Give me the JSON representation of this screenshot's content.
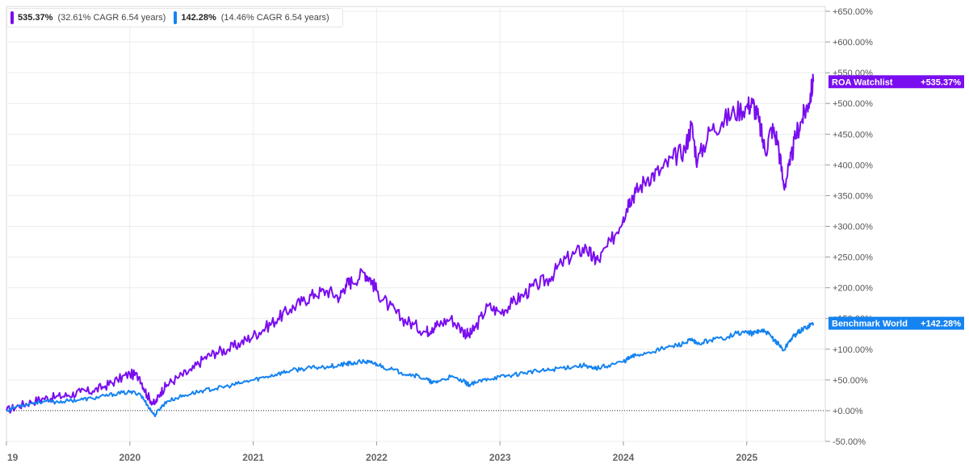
{
  "legend": {
    "items": [
      {
        "value": "535.37%",
        "note": "(32.61% CAGR 6.54 years)",
        "color": "#7a0df0"
      },
      {
        "value": "142.28%",
        "note": "(14.46% CAGR 6.54 years)",
        "color": "#1583f0"
      }
    ]
  },
  "chart_data": {
    "type": "line",
    "title": "",
    "xlabel": "",
    "ylabel": "",
    "x_tick_labels": [
      "19",
      "2020",
      "2021",
      "2022",
      "2023",
      "2024",
      "2025"
    ],
    "y_tick_labels": [
      "-50.00%",
      "+0.00%",
      "+50.00%",
      "+100.00%",
      "+150.00%",
      "+200.00%",
      "+250.00%",
      "+300.00%",
      "+350.00%",
      "+400.00%",
      "+450.00%",
      "+500.00%",
      "+550.00%",
      "+600.00%",
      "+650.00%"
    ],
    "y_ticks": [
      -50,
      0,
      50,
      100,
      150,
      200,
      250,
      300,
      350,
      400,
      450,
      500,
      550,
      600,
      650
    ],
    "xlim": [
      2019.0,
      2025.7
    ],
    "ylim": [
      -50,
      650
    ],
    "grid": true,
    "zero_line": true,
    "series": [
      {
        "name": "ROA Watchlist",
        "color": "#7a0df0",
        "end_label": "+535.37%",
        "x": [
          2019.0,
          2019.1,
          2019.2,
          2019.3,
          2019.4,
          2019.5,
          2019.6,
          2019.7,
          2019.8,
          2019.9,
          2020.0,
          2020.08,
          2020.14,
          2020.2,
          2020.25,
          2020.3,
          2020.4,
          2020.5,
          2020.6,
          2020.7,
          2020.8,
          2020.9,
          2021.0,
          2021.1,
          2021.2,
          2021.3,
          2021.4,
          2021.5,
          2021.6,
          2021.7,
          2021.75,
          2021.8,
          2021.9,
          2021.95,
          2022.0,
          2022.1,
          2022.2,
          2022.3,
          2022.4,
          2022.45,
          2022.5,
          2022.6,
          2022.7,
          2022.75,
          2022.8,
          2022.9,
          2023.0,
          2023.1,
          2023.2,
          2023.3,
          2023.4,
          2023.5,
          2023.6,
          2023.7,
          2023.75,
          2023.8,
          2023.9,
          2024.0,
          2024.05,
          2024.1,
          2024.2,
          2024.3,
          2024.4,
          2024.5,
          2024.55,
          2024.6,
          2024.7,
          2024.8,
          2024.9,
          2025.0,
          2025.05,
          2025.1,
          2025.15,
          2025.2,
          2025.25,
          2025.3,
          2025.35,
          2025.4,
          2025.45,
          2025.5,
          2025.54
        ],
        "y": [
          0,
          8,
          14,
          20,
          22,
          25,
          30,
          32,
          40,
          50,
          60,
          55,
          25,
          10,
          30,
          42,
          55,
          65,
          85,
          95,
          100,
          110,
          122,
          135,
          150,
          165,
          178,
          190,
          195,
          185,
          205,
          210,
          225,
          215,
          195,
          170,
          150,
          140,
          128,
          135,
          140,
          150,
          130,
          122,
          135,
          170,
          160,
          175,
          190,
          205,
          215,
          240,
          255,
          265,
          248,
          245,
          275,
          315,
          345,
          355,
          380,
          390,
          410,
          425,
          465,
          405,
          455,
          470,
          485,
          495,
          500,
          470,
          420,
          460,
          440,
          365,
          400,
          450,
          475,
          500,
          535.37
        ]
      },
      {
        "name": "Benchmark World",
        "color": "#1583f0",
        "end_label": "+142.28%",
        "x": [
          2019.0,
          2019.1,
          2019.2,
          2019.3,
          2019.4,
          2019.5,
          2019.6,
          2019.7,
          2019.8,
          2019.9,
          2020.0,
          2020.08,
          2020.14,
          2020.2,
          2020.25,
          2020.3,
          2020.4,
          2020.5,
          2020.6,
          2020.7,
          2020.8,
          2020.9,
          2021.0,
          2021.1,
          2021.2,
          2021.3,
          2021.4,
          2021.5,
          2021.6,
          2021.7,
          2021.75,
          2021.8,
          2021.9,
          2021.95,
          2022.0,
          2022.1,
          2022.2,
          2022.3,
          2022.4,
          2022.45,
          2022.5,
          2022.6,
          2022.7,
          2022.75,
          2022.8,
          2022.9,
          2023.0,
          2023.1,
          2023.2,
          2023.3,
          2023.4,
          2023.5,
          2023.6,
          2023.7,
          2023.75,
          2023.8,
          2023.9,
          2024.0,
          2024.05,
          2024.1,
          2024.2,
          2024.3,
          2024.4,
          2024.5,
          2024.55,
          2024.6,
          2024.7,
          2024.8,
          2024.9,
          2025.0,
          2025.05,
          2025.1,
          2025.15,
          2025.2,
          2025.25,
          2025.3,
          2025.35,
          2025.4,
          2025.45,
          2025.5,
          2025.54
        ],
        "y": [
          0,
          8,
          12,
          15,
          14,
          16,
          18,
          20,
          24,
          28,
          30,
          28,
          10,
          -8,
          5,
          15,
          22,
          28,
          33,
          36,
          40,
          45,
          50,
          55,
          60,
          65,
          68,
          70,
          72,
          74,
          76,
          77,
          80,
          78,
          76,
          68,
          62,
          58,
          52,
          45,
          48,
          55,
          48,
          42,
          45,
          52,
          55,
          58,
          62,
          64,
          66,
          70,
          72,
          74,
          68,
          70,
          75,
          80,
          86,
          90,
          95,
          100,
          105,
          110,
          115,
          108,
          115,
          118,
          125,
          128,
          125,
          130,
          128,
          120,
          110,
          98,
          115,
          125,
          132,
          138,
          142.28
        ]
      }
    ]
  }
}
